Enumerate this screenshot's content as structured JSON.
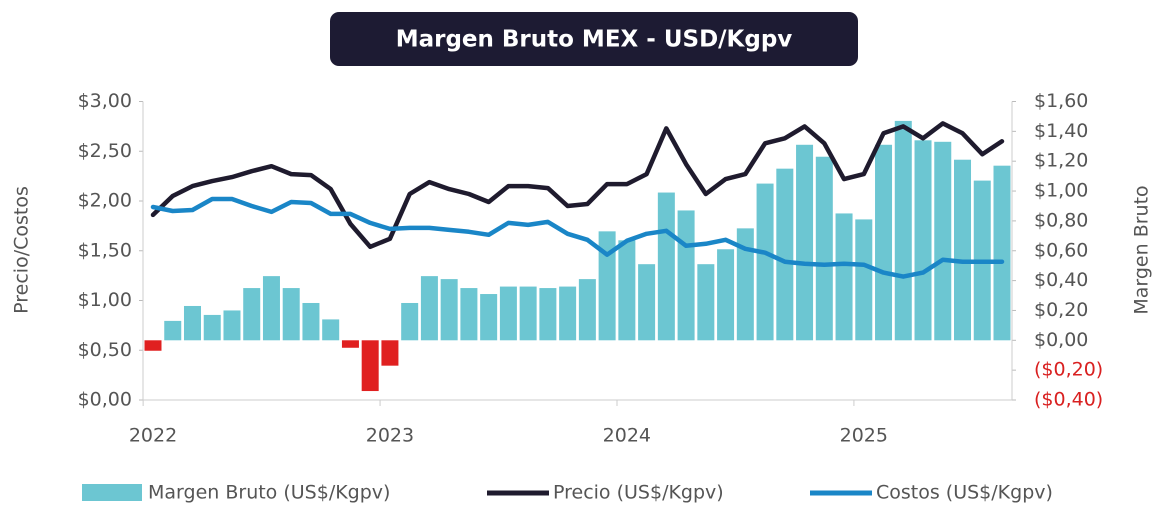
{
  "chart_data": {
    "type": "bar",
    "title": "Margen Bruto MEX - USD/Kgpv",
    "y_label": "Precio/Costos",
    "y2_label": "Margen Bruto",
    "categories": [
      "2022",
      null,
      null,
      null,
      null,
      null,
      null,
      null,
      null,
      null,
      null,
      null,
      "2023",
      null,
      null,
      null,
      null,
      null,
      null,
      null,
      null,
      null,
      null,
      null,
      "2024",
      null,
      null,
      null,
      null,
      null,
      null,
      null,
      null,
      null,
      null,
      null,
      "2025",
      null,
      null,
      null,
      null,
      null,
      null,
      null
    ],
    "ylim": [
      0,
      3
    ],
    "yticks": [
      {
        "value": 0,
        "label": "$0,00"
      },
      {
        "value": 0.5,
        "label": "$0,50"
      },
      {
        "value": 1,
        "label": "$1,00"
      },
      {
        "value": 1.5,
        "label": "$1,50"
      },
      {
        "value": 2,
        "label": "$2,00"
      },
      {
        "value": 2.5,
        "label": "$2,50"
      },
      {
        "value": 3,
        "label": "$3,00"
      }
    ],
    "y2lim": [
      -0.4,
      1.6
    ],
    "y2ticks": [
      {
        "value": -0.4,
        "label": "($0,40)"
      },
      {
        "value": -0.2,
        "label": "($0,20)"
      },
      {
        "value": 0,
        "label": "$0,00"
      },
      {
        "value": 0.2,
        "label": "$0,20"
      },
      {
        "value": 0.4,
        "label": "$0,40"
      },
      {
        "value": 0.6,
        "label": "$0,60"
      },
      {
        "value": 0.8,
        "label": "$0,80"
      },
      {
        "value": 1,
        "label": "$1,00"
      },
      {
        "value": 1.2,
        "label": "$1,20"
      },
      {
        "value": 1.4,
        "label": "$1,40"
      },
      {
        "value": 1.6,
        "label": "$1,60"
      }
    ],
    "negative_tick_color": "#d92020",
    "series": [
      {
        "name": "Margen Bruto (US$/Kgpv)",
        "type": "bar",
        "axis": "y2",
        "color": "#6cc6d2",
        "negative_color": "#e02020",
        "values": [
          -0.07,
          0.13,
          0.23,
          0.17,
          0.2,
          0.35,
          0.43,
          0.35,
          0.25,
          0.14,
          -0.05,
          -0.34,
          -0.17,
          0.25,
          0.43,
          0.41,
          0.35,
          0.31,
          0.36,
          0.36,
          0.35,
          0.36,
          0.41,
          0.73,
          0.67,
          0.51,
          0.99,
          0.87,
          0.51,
          0.61,
          0.75,
          1.05,
          1.15,
          1.31,
          1.23,
          0.85,
          0.81,
          1.31,
          1.47,
          1.34,
          1.33,
          1.21,
          1.07,
          1.17
        ]
      },
      {
        "name": "Precio (US$/Kgpv)",
        "type": "line",
        "color": "#1f1b2e",
        "values": [
          1.86,
          2.05,
          2.15,
          2.2,
          2.24,
          2.3,
          2.35,
          2.27,
          2.26,
          2.12,
          1.77,
          1.54,
          1.62,
          2.07,
          2.19,
          2.12,
          2.07,
          1.99,
          2.15,
          2.15,
          2.13,
          1.95,
          1.97,
          2.17,
          2.17,
          2.27,
          2.73,
          2.37,
          2.07,
          2.22,
          2.27,
          2.58,
          2.63,
          2.75,
          2.58,
          2.22,
          2.27,
          2.68,
          2.75,
          2.63,
          2.78,
          2.68,
          2.47,
          2.6
        ]
      },
      {
        "name": "Costos (US$/Kgpv)",
        "type": "line",
        "color": "#1a86c7",
        "values": [
          1.94,
          1.9,
          1.91,
          2.02,
          2.02,
          1.95,
          1.89,
          1.99,
          1.98,
          1.87,
          1.87,
          1.78,
          1.72,
          1.73,
          1.73,
          1.71,
          1.69,
          1.66,
          1.78,
          1.76,
          1.79,
          1.67,
          1.61,
          1.46,
          1.6,
          1.67,
          1.7,
          1.55,
          1.57,
          1.61,
          1.52,
          1.48,
          1.39,
          1.37,
          1.36,
          1.37,
          1.36,
          1.28,
          1.24,
          1.28,
          1.41,
          1.39,
          1.39,
          1.39
        ]
      }
    ]
  }
}
